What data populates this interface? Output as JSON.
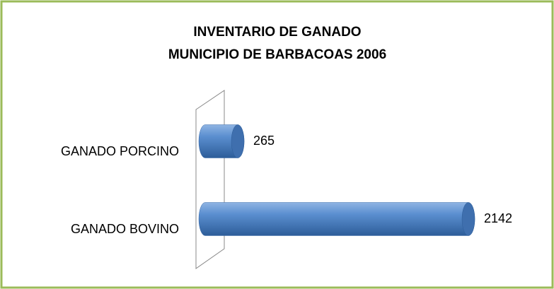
{
  "chart_data": {
    "type": "bar3d",
    "title": [
      "INVENTARIO DE GANADO",
      "MUNICIPIO DE BARBACOAS 2006"
    ],
    "categories": [
      "GANADO PORCINO",
      "GANADO BOVINO"
    ],
    "values": [
      265,
      2142
    ],
    "color": "#4f81bd"
  }
}
